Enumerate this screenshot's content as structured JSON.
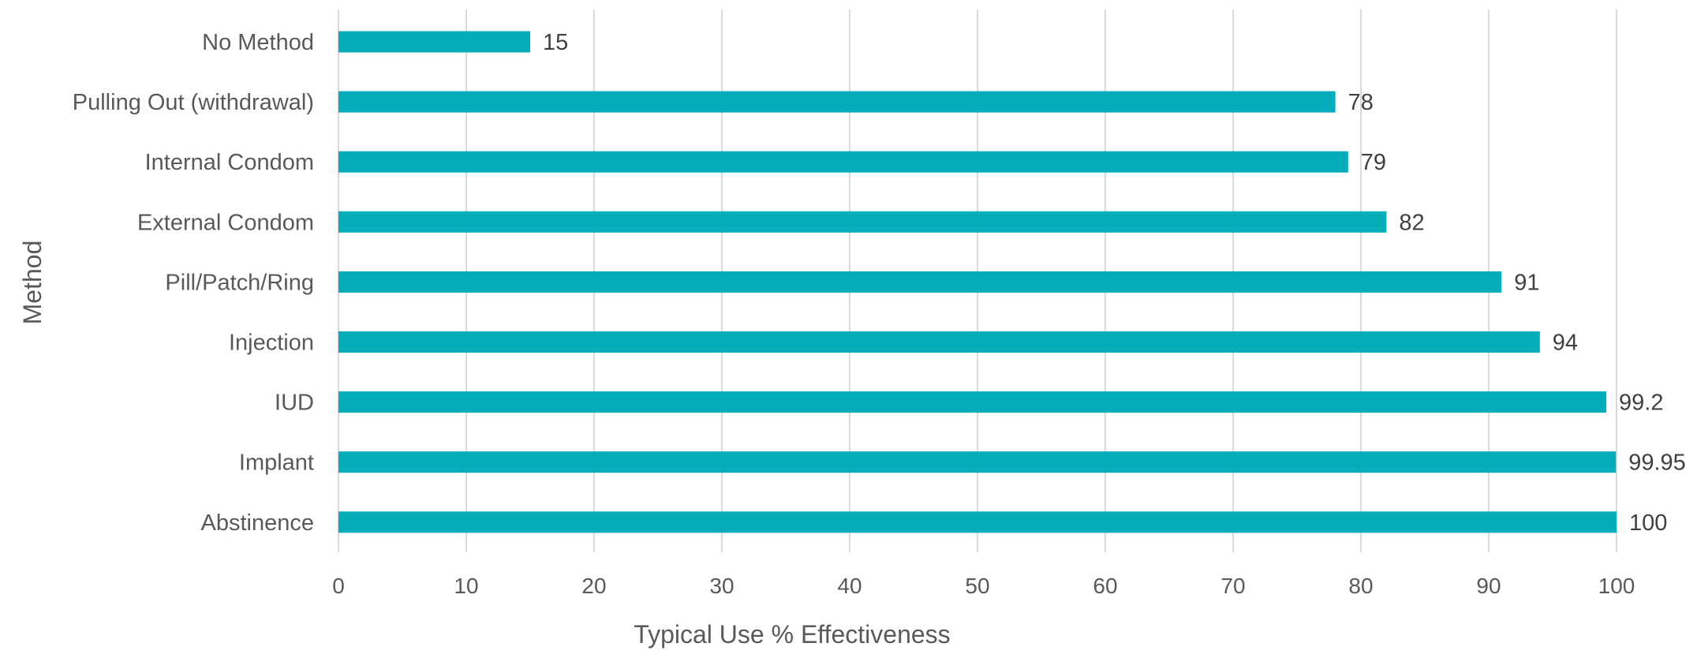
{
  "chart_data": {
    "type": "bar",
    "orientation": "horizontal",
    "title": "",
    "xlabel": "Typical Use % Effectiveness",
    "ylabel": "Method",
    "categories": [
      "No Method",
      "Pulling Out (withdrawal)",
      "Internal Condom",
      "External Condom",
      "Pill/Patch/Ring",
      "Injection",
      "IUD",
      "Implant",
      "Abstinence"
    ],
    "values": [
      15,
      78,
      79,
      82,
      91,
      94,
      99.2,
      99.95,
      100
    ],
    "data_labels": [
      "15",
      "78",
      "79",
      "82",
      "91",
      "94",
      "99.2",
      "99.95",
      "100"
    ],
    "xlim": [
      0,
      100
    ],
    "x_ticks": [
      0,
      10,
      20,
      30,
      40,
      50,
      60,
      70,
      80,
      90,
      100
    ],
    "x_tick_labels": [
      "0",
      "10",
      "20",
      "30",
      "40",
      "50",
      "60",
      "70",
      "80",
      "90",
      "100"
    ],
    "grid": "vertical",
    "legend": "none",
    "bar_color": "#03ADBA"
  }
}
